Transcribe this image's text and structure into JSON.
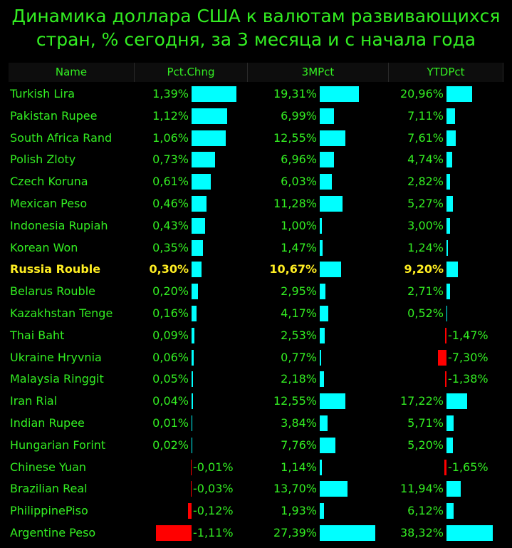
{
  "title_line1": "Динамика доллара США к валютам развивающихся",
  "title_line2": "стран, % сегодня, за 3 месяца и с начала года",
  "colors": {
    "positive": "#00ffff",
    "negative": "#ff0000",
    "text": "#33ee22",
    "highlight": "#ffee22"
  },
  "chart_data": {
    "type": "table",
    "columns": [
      "Name",
      "Pct.Chng",
      "3MPct",
      "YTDPct"
    ],
    "highlight_row": "Russia Rouble",
    "rows": [
      {
        "name": "Turkish Lira",
        "pct": 1.39,
        "m3": 19.31,
        "ytd": 20.96,
        "pct_label": "1,39%",
        "m3_label": "19,31%",
        "ytd_label": "20,96%"
      },
      {
        "name": "Pakistan Rupee",
        "pct": 1.12,
        "m3": 6.99,
        "ytd": 7.11,
        "pct_label": "1,12%",
        "m3_label": "6,99%",
        "ytd_label": "7,11%"
      },
      {
        "name": "South Africa Rand",
        "pct": 1.06,
        "m3": 12.55,
        "ytd": 7.61,
        "pct_label": "1,06%",
        "m3_label": "12,55%",
        "ytd_label": "7,61%"
      },
      {
        "name": "Polish Zloty",
        "pct": 0.73,
        "m3": 6.96,
        "ytd": 4.74,
        "pct_label": "0,73%",
        "m3_label": "6,96%",
        "ytd_label": "4,74%"
      },
      {
        "name": "Czech Koruna",
        "pct": 0.61,
        "m3": 6.03,
        "ytd": 2.82,
        "pct_label": "0,61%",
        "m3_label": "6,03%",
        "ytd_label": "2,82%"
      },
      {
        "name": "Mexican Peso",
        "pct": 0.46,
        "m3": 11.28,
        "ytd": 5.27,
        "pct_label": "0,46%",
        "m3_label": "11,28%",
        "ytd_label": "5,27%"
      },
      {
        "name": "Indonesia Rupiah",
        "pct": 0.43,
        "m3": 1.0,
        "ytd": 3.0,
        "pct_label": "0,43%",
        "m3_label": "1,00%",
        "ytd_label": "3,00%"
      },
      {
        "name": "Korean Won",
        "pct": 0.35,
        "m3": 1.47,
        "ytd": 1.24,
        "pct_label": "0,35%",
        "m3_label": "1,47%",
        "ytd_label": "1,24%"
      },
      {
        "name": "Russia Rouble",
        "pct": 0.3,
        "m3": 10.67,
        "ytd": 9.2,
        "pct_label": "0,30%",
        "m3_label": "10,67%",
        "ytd_label": "9,20%"
      },
      {
        "name": "Belarus Rouble",
        "pct": 0.2,
        "m3": 2.95,
        "ytd": 2.71,
        "pct_label": "0,20%",
        "m3_label": "2,95%",
        "ytd_label": "2,71%"
      },
      {
        "name": "Kazakhstan Tenge",
        "pct": 0.16,
        "m3": 4.17,
        "ytd": 0.52,
        "pct_label": "0,16%",
        "m3_label": "4,17%",
        "ytd_label": "0,52%"
      },
      {
        "name": "Thai Baht",
        "pct": 0.09,
        "m3": 2.53,
        "ytd": -1.47,
        "pct_label": "0,09%",
        "m3_label": "2,53%",
        "ytd_label": "-1,47%"
      },
      {
        "name": "Ukraine Hryvnia",
        "pct": 0.06,
        "m3": 0.77,
        "ytd": -7.3,
        "pct_label": "0,06%",
        "m3_label": "0,77%",
        "ytd_label": "-7,30%"
      },
      {
        "name": "Malaysia Ringgit",
        "pct": 0.05,
        "m3": 2.18,
        "ytd": -1.38,
        "pct_label": "0,05%",
        "m3_label": "2,18%",
        "ytd_label": "-1,38%"
      },
      {
        "name": "Iran Rial",
        "pct": 0.04,
        "m3": 12.55,
        "ytd": 17.22,
        "pct_label": "0,04%",
        "m3_label": "12,55%",
        "ytd_label": "17,22%"
      },
      {
        "name": "Indian Rupee",
        "pct": 0.01,
        "m3": 3.84,
        "ytd": 5.71,
        "pct_label": "0,01%",
        "m3_label": "3,84%",
        "ytd_label": "5,71%"
      },
      {
        "name": "Hungarian Forint",
        "pct": 0.02,
        "m3": 7.76,
        "ytd": 5.2,
        "pct_label": "0,02%",
        "m3_label": "7,76%",
        "ytd_label": "5,20%"
      },
      {
        "name": "Chinese Yuan",
        "pct": -0.01,
        "m3": 1.14,
        "ytd": -1.65,
        "pct_label": "-0,01%",
        "m3_label": "1,14%",
        "ytd_label": "-1,65%"
      },
      {
        "name": "Brazilian Real",
        "pct": -0.03,
        "m3": 13.7,
        "ytd": 11.94,
        "pct_label": "-0,03%",
        "m3_label": "13,70%",
        "ytd_label": "11,94%"
      },
      {
        "name": "PhilippinePiso",
        "pct": -0.12,
        "m3": 1.93,
        "ytd": 6.12,
        "pct_label": "-0,12%",
        "m3_label": "1,93%",
        "ytd_label": "6,12%"
      },
      {
        "name": "Argentine Peso",
        "pct": -1.11,
        "m3": 27.39,
        "ytd": 38.32,
        "pct_label": "-1,11%",
        "m3_label": "27,39%",
        "ytd_label": "38,32%"
      }
    ]
  }
}
